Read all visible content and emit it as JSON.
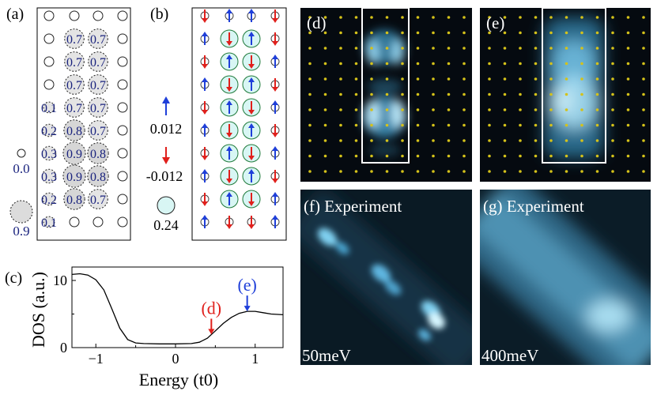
{
  "panel_labels": {
    "a": "(a)",
    "b": "(b)",
    "c": "(c)",
    "d": "(d)",
    "e": "(e)",
    "f": "(f) Experiment",
    "g": "(g) Experiment"
  },
  "panel_a": {
    "rows": [
      [
        "",
        "",
        "",
        ""
      ],
      [
        "",
        "0.7",
        "0.7",
        ""
      ],
      [
        "",
        "0.7",
        "0.7",
        ""
      ],
      [
        "",
        "0.7",
        "0.7",
        ""
      ],
      [
        "0.1",
        "0.7",
        "0.7",
        ""
      ],
      [
        "0.2",
        "0.8",
        "0.7",
        ""
      ],
      [
        "0.3",
        "0.9",
        "0.8",
        ""
      ],
      [
        "0.3",
        "0.9",
        "0.8",
        ""
      ],
      [
        "0.2",
        "0.8",
        "0.7",
        ""
      ],
      [
        "0.1",
        "",
        "",
        ""
      ]
    ],
    "legend": [
      "0.0",
      "0.9"
    ]
  },
  "panel_b": {
    "rows": [
      [
        "down",
        "up",
        "up",
        "down"
      ],
      [
        "up",
        "down",
        "up",
        "down"
      ],
      [
        "down",
        "up",
        "down",
        "up"
      ],
      [
        "up",
        "down",
        "up",
        "down"
      ],
      [
        "down",
        "up",
        "down",
        "up"
      ],
      [
        "up",
        "down",
        "up",
        "down"
      ],
      [
        "down",
        "up",
        "down",
        "up"
      ],
      [
        "up",
        "down",
        "up",
        "down"
      ],
      [
        "down",
        "up",
        "down",
        "up"
      ],
      [
        "up",
        "down",
        "down",
        "up"
      ]
    ],
    "legend": [
      "0.012",
      "-0.012",
      "0.24"
    ],
    "colors": {
      "up": "#1f3fd9",
      "down": "#e0201c",
      "circle_fill": "#d8f6f4",
      "circle_stroke": "#1f7a3a"
    }
  },
  "chart_data": {
    "type": "line",
    "xlabel": "Energy (t0)",
    "ylabel": "DOS (a.u.)",
    "xlim": [
      -1.3,
      1.35
    ],
    "ylim": [
      0,
      12
    ],
    "xticks": [
      -1,
      0,
      1
    ],
    "yticks": [
      0,
      10
    ],
    "series": [
      {
        "x": [
          -1.3,
          -1.2,
          -1.1,
          -1.0,
          -0.9,
          -0.8,
          -0.7,
          -0.6,
          -0.5,
          -0.4,
          -0.2,
          0.0,
          0.2,
          0.3,
          0.4,
          0.5,
          0.6,
          0.7,
          0.8,
          0.9,
          1.0,
          1.1,
          1.2,
          1.35
        ],
        "values": [
          10.9,
          11.0,
          10.8,
          10.1,
          8.6,
          5.8,
          2.9,
          1.2,
          0.7,
          0.6,
          0.55,
          0.55,
          0.6,
          0.8,
          1.4,
          2.5,
          3.6,
          4.5,
          5.1,
          5.4,
          5.4,
          5.2,
          5.0,
          4.9
        ]
      }
    ],
    "annotations": [
      {
        "label": "(d)",
        "x": 0.45,
        "color": "#e0201c"
      },
      {
        "label": "(e)",
        "x": 0.9,
        "color": "#1f3fd9"
      }
    ]
  },
  "image_labels": {
    "f_energy": "50meV",
    "g_energy": "400meV"
  },
  "colors": {
    "lattice_dot": "#d4c21a",
    "map_bg": "#050a10",
    "map_glow": "#7fd8ff"
  }
}
